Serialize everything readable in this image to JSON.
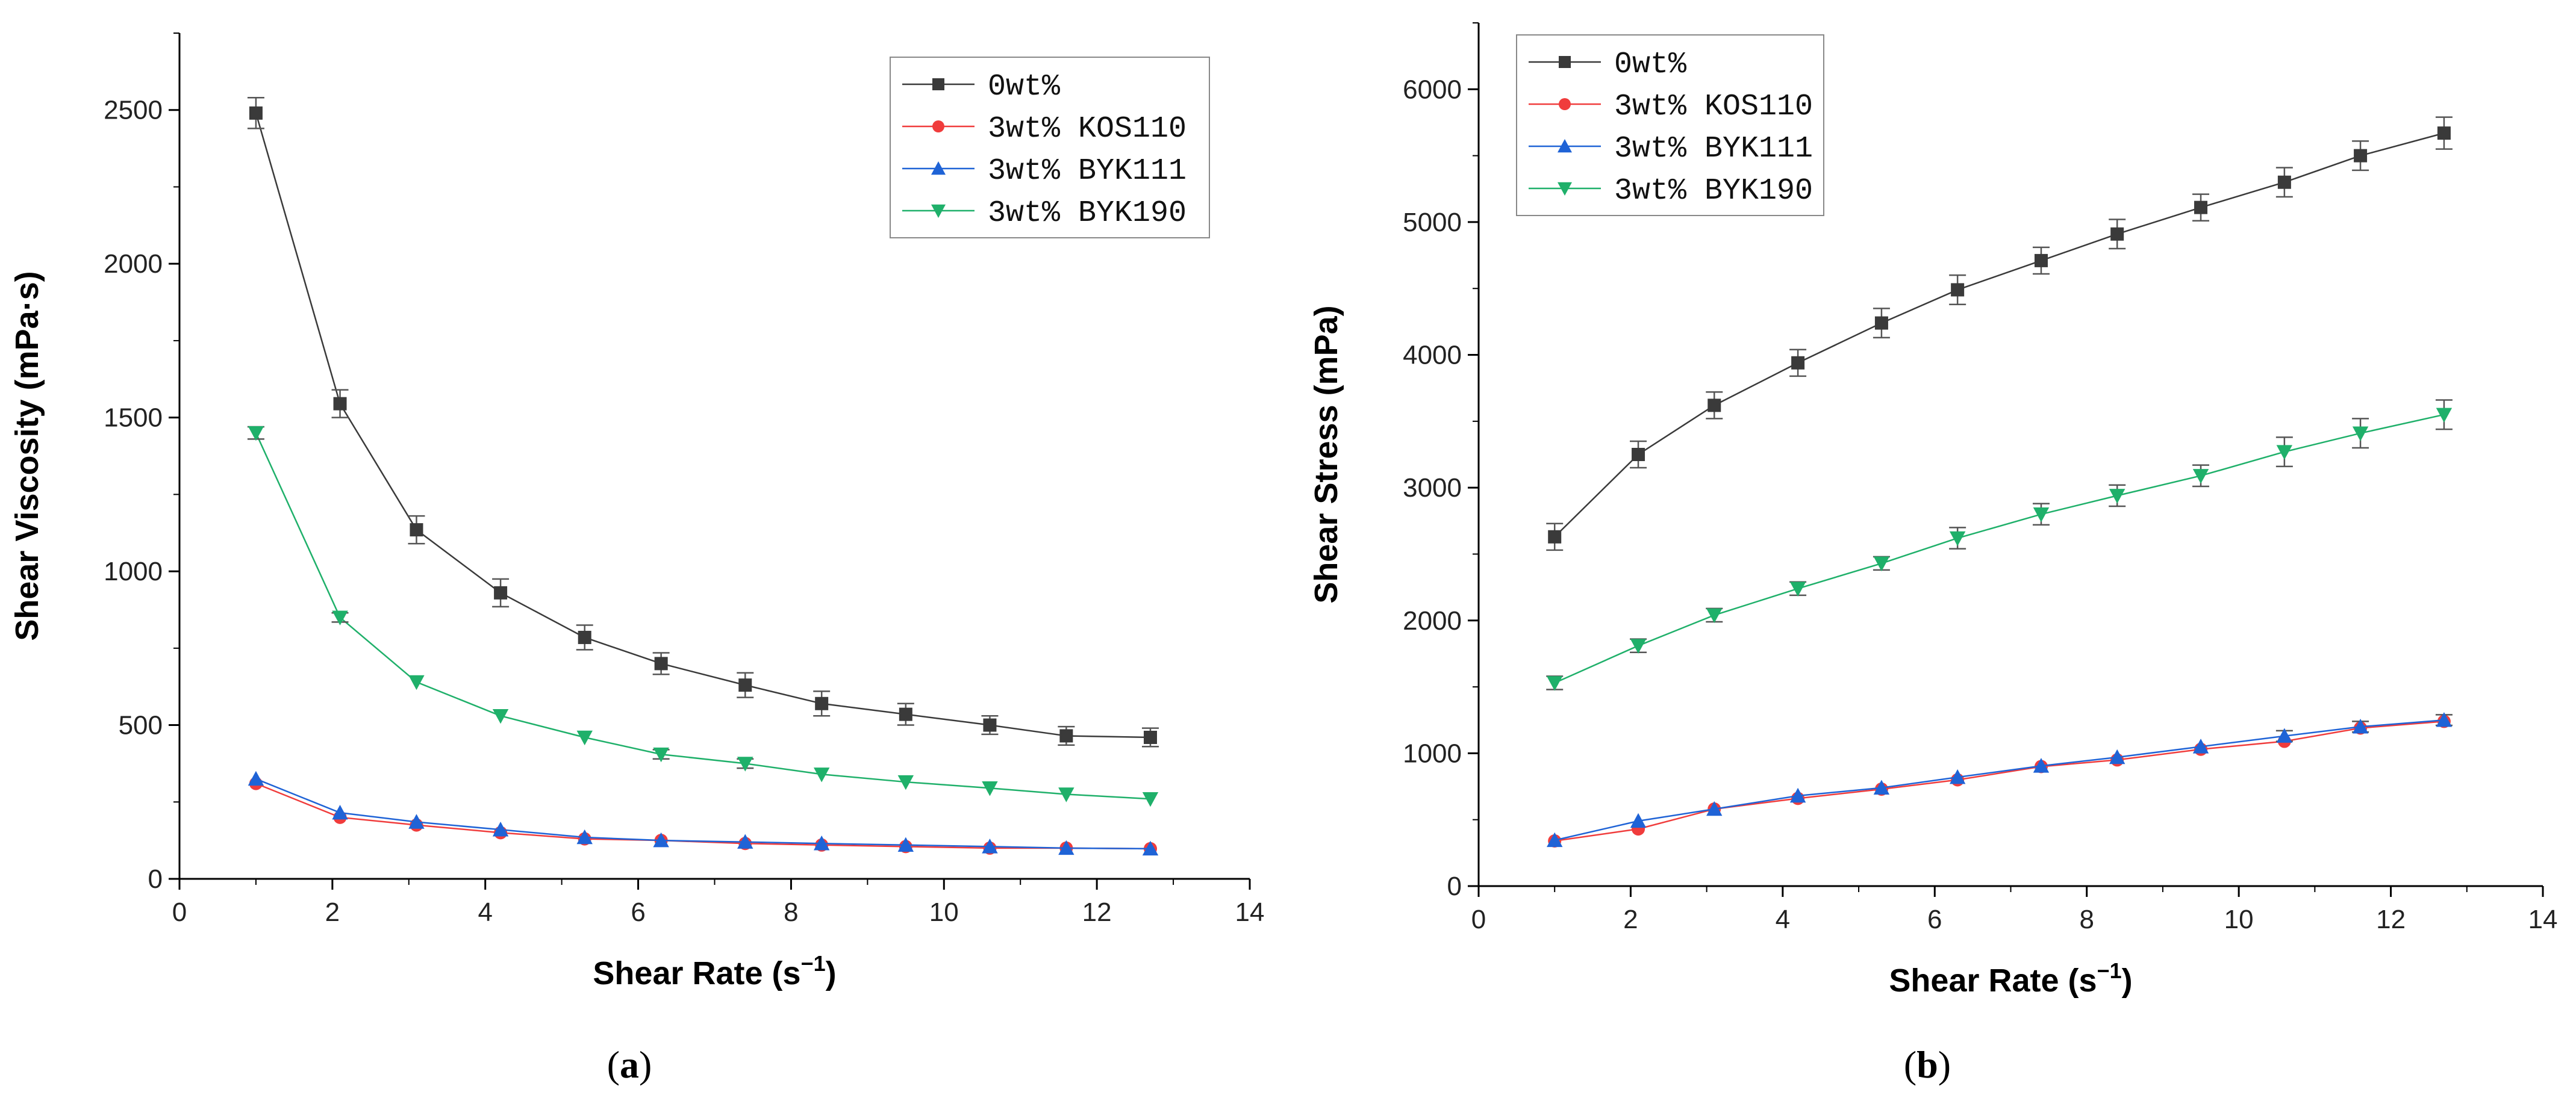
{
  "colors": {
    "0wt%": "#3a3a3a",
    "3wt% KOS110": "#f03c3c",
    "3wt% BYK111": "#1f63d6",
    "3wt% BYK190": "#1fb06a",
    "errorbar": "#555555",
    "axis": "#000000"
  },
  "marker_icons": {
    "0wt%": "square-marker-icon",
    "3wt% KOS110": "circle-marker-icon",
    "3wt% BYK111": "triangle-up-marker-icon",
    "3wt% BYK190": "triangle-down-marker-icon"
  },
  "panels": {
    "a": {
      "open": "(",
      "letter": "a",
      "close": ")"
    },
    "b": {
      "open": "(",
      "letter": "b",
      "close": ")"
    }
  },
  "chart_data": [
    {
      "type": "line",
      "panel": "a",
      "title": "",
      "xlabel_text": "Shear Rate (s",
      "xlabel_sup": "−1",
      "xlabel_close": ")",
      "ylabel": "Shear Viscosity (mPa·s)",
      "xlim": [
        0,
        14
      ],
      "ylim": [
        0,
        2750
      ],
      "xticks": [
        0,
        2,
        4,
        6,
        8,
        10,
        12,
        14
      ],
      "yticks": [
        0,
        500,
        1000,
        1500,
        2000,
        2500
      ],
      "legend_position": "top-right",
      "x": [
        1.0,
        2.1,
        3.1,
        4.2,
        5.3,
        6.3,
        7.4,
        8.4,
        9.5,
        10.6,
        11.6,
        12.7
      ],
      "series": [
        {
          "name": "0wt%",
          "marker": "square",
          "values": [
            2490,
            1545,
            1135,
            930,
            785,
            700,
            630,
            570,
            535,
            500,
            465,
            460
          ],
          "errors": [
            50,
            45,
            45,
            45,
            40,
            35,
            40,
            40,
            35,
            30,
            30,
            30
          ]
        },
        {
          "name": "3wt% KOS110",
          "marker": "circle",
          "values": [
            310,
            200,
            175,
            150,
            130,
            125,
            115,
            110,
            105,
            100,
            100,
            98
          ],
          "errors": [
            0,
            0,
            0,
            0,
            0,
            0,
            0,
            0,
            0,
            0,
            0,
            0
          ]
        },
        {
          "name": "3wt% BYK111",
          "marker": "triangle-up",
          "values": [
            325,
            215,
            185,
            160,
            135,
            125,
            120,
            115,
            110,
            105,
            100,
            98
          ],
          "errors": [
            0,
            0,
            0,
            0,
            0,
            0,
            0,
            0,
            0,
            0,
            0,
            0
          ]
        },
        {
          "name": "3wt% BYK190",
          "marker": "triangle-down",
          "values": [
            1450,
            850,
            640,
            530,
            460,
            405,
            375,
            340,
            315,
            295,
            275,
            260
          ],
          "errors": [
            20,
            15,
            0,
            0,
            0,
            15,
            15,
            0,
            0,
            0,
            0,
            0
          ]
        }
      ]
    },
    {
      "type": "line",
      "panel": "b",
      "title": "",
      "xlabel_text": "Shear Rate (s",
      "xlabel_sup": "−1",
      "xlabel_close": ")",
      "ylabel": "Shear Stress (mPa)",
      "xlim": [
        0,
        14
      ],
      "ylim": [
        0,
        6500
      ],
      "xticks": [
        0,
        2,
        4,
        6,
        8,
        10,
        12,
        14
      ],
      "yticks": [
        0,
        1000,
        2000,
        3000,
        4000,
        5000,
        6000
      ],
      "legend_position": "top-left",
      "x": [
        1.0,
        2.1,
        3.1,
        4.2,
        5.3,
        6.3,
        7.4,
        8.4,
        9.5,
        10.6,
        11.6,
        12.7
      ],
      "series": [
        {
          "name": "0wt%",
          "marker": "square",
          "values": [
            2630,
            3250,
            3620,
            3940,
            4240,
            4490,
            4710,
            4910,
            5110,
            5300,
            5500,
            5670
          ],
          "errors": [
            100,
            100,
            100,
            100,
            110,
            110,
            100,
            110,
            100,
            110,
            110,
            120
          ]
        },
        {
          "name": "3wt% KOS110",
          "marker": "circle",
          "values": [
            340,
            430,
            580,
            660,
            730,
            800,
            900,
            950,
            1030,
            1090,
            1190,
            1240
          ],
          "errors": [
            0,
            0,
            0,
            0,
            0,
            0,
            0,
            0,
            0,
            0,
            0,
            0
          ]
        },
        {
          "name": "3wt% BYK111",
          "marker": "triangle-up",
          "values": [
            345,
            490,
            580,
            680,
            740,
            820,
            905,
            970,
            1050,
            1130,
            1200,
            1250
          ],
          "errors": [
            0,
            0,
            0,
            0,
            0,
            0,
            0,
            0,
            0,
            40,
            40,
            40
          ]
        },
        {
          "name": "3wt% BYK190",
          "marker": "triangle-down",
          "values": [
            1530,
            1810,
            2040,
            2240,
            2430,
            2620,
            2800,
            2940,
            3090,
            3270,
            3410,
            3550
          ],
          "errors": [
            50,
            50,
            50,
            50,
            50,
            80,
            80,
            80,
            80,
            110,
            110,
            110
          ]
        }
      ]
    }
  ]
}
